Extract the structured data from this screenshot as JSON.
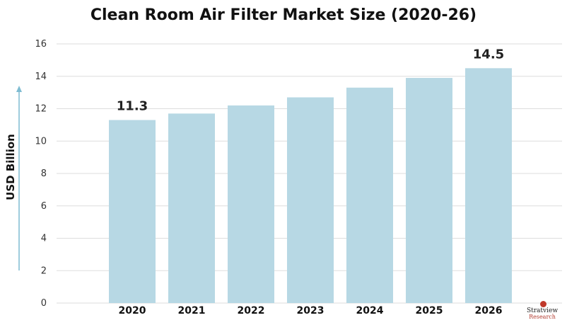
{
  "chart_data": {
    "type": "bar",
    "title": "Clean Room Air Filter Market Size (2020-26)",
    "ylabel": "USD Billion",
    "xlabel": "",
    "categories": [
      "2020",
      "2021",
      "2022",
      "2023",
      "2024",
      "2025",
      "2026"
    ],
    "values": [
      11.3,
      11.7,
      12.2,
      12.7,
      13.3,
      13.9,
      14.5
    ],
    "data_labels": [
      {
        "category": "2020",
        "text": "11.3"
      },
      {
        "category": "2026",
        "text": "14.5"
      }
    ],
    "ylim": [
      0,
      16
    ],
    "yticks": [
      "0",
      "2",
      "4",
      "6",
      "8",
      "10",
      "12",
      "14",
      "16"
    ],
    "grid": true,
    "bar_color": "#b7d8e4",
    "axis_arrow_color": "#7fbcd2"
  },
  "branding": {
    "logo_text": "Stratview",
    "logo_sub": "Research"
  }
}
